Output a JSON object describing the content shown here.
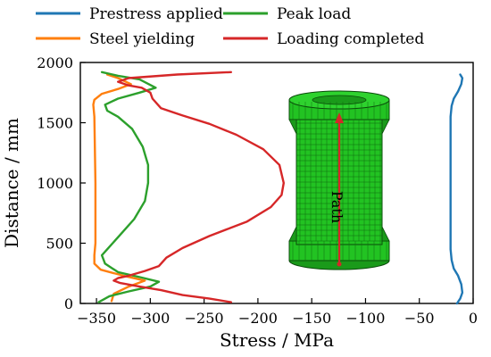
{
  "chart_data": {
    "type": "line",
    "xlabel": "Stress / MPa",
    "ylabel": "Distance / mm",
    "xlim": [
      -365,
      0
    ],
    "ylim": [
      0,
      2000
    ],
    "xticks": [
      -350,
      -300,
      -250,
      -200,
      -150,
      -100,
      -50,
      0
    ],
    "yticks": [
      0,
      500,
      1000,
      1500,
      2000
    ],
    "grid": false,
    "legend_position": "top",
    "inset_annotation": "Path",
    "colors": {
      "prestress": "#1f77b4",
      "peak": "#2ca02c",
      "yield": "#ff7f0e",
      "complete": "#d62728",
      "model_fill": "#22c322",
      "model_mesh": "#0f6b0f",
      "arrow": "#d62728"
    },
    "series": [
      {
        "name": "Prestress applied",
        "color": "#1f77b4",
        "points": [
          [
            -12,
            1900
          ],
          [
            -10,
            1870
          ],
          [
            -11,
            1820
          ],
          [
            -14,
            1760
          ],
          [
            -18,
            1700
          ],
          [
            -20,
            1640
          ],
          [
            -21,
            1550
          ],
          [
            -21,
            1000
          ],
          [
            -21,
            450
          ],
          [
            -20,
            360
          ],
          [
            -18,
            290
          ],
          [
            -14,
            230
          ],
          [
            -11,
            160
          ],
          [
            -10,
            90
          ],
          [
            -12,
            40
          ],
          [
            -15,
            0
          ]
        ]
      },
      {
        "name": "Steel yielding",
        "color": "#ff7f0e",
        "points": [
          [
            -340,
            1900
          ],
          [
            -330,
            1870
          ],
          [
            -318,
            1820
          ],
          [
            -330,
            1780
          ],
          [
            -345,
            1740
          ],
          [
            -352,
            1690
          ],
          [
            -353,
            1650
          ],
          [
            -352,
            1550
          ],
          [
            -351,
            1000
          ],
          [
            -351,
            500
          ],
          [
            -352,
            400
          ],
          [
            -352,
            330
          ],
          [
            -346,
            280
          ],
          [
            -325,
            230
          ],
          [
            -305,
            190
          ],
          [
            -320,
            140
          ],
          [
            -334,
            80
          ],
          [
            -336,
            20
          ]
        ]
      },
      {
        "name": "Peak load",
        "color": "#2ca02c",
        "points": [
          [
            -345,
            1920
          ],
          [
            -330,
            1890
          ],
          [
            -310,
            1860
          ],
          [
            -295,
            1790
          ],
          [
            -310,
            1750
          ],
          [
            -330,
            1700
          ],
          [
            -342,
            1650
          ],
          [
            -340,
            1600
          ],
          [
            -330,
            1550
          ],
          [
            -317,
            1450
          ],
          [
            -307,
            1300
          ],
          [
            -302,
            1150
          ],
          [
            -302,
            1000
          ],
          [
            -305,
            850
          ],
          [
            -315,
            700
          ],
          [
            -330,
            550
          ],
          [
            -340,
            450
          ],
          [
            -345,
            400
          ],
          [
            -342,
            330
          ],
          [
            -330,
            260
          ],
          [
            -308,
            215
          ],
          [
            -292,
            180
          ],
          [
            -300,
            140
          ],
          [
            -320,
            100
          ],
          [
            -338,
            60
          ],
          [
            -348,
            10
          ]
        ]
      },
      {
        "name": "Loading completed",
        "color": "#d62728",
        "points": [
          [
            -225,
            1920
          ],
          [
            -275,
            1900
          ],
          [
            -320,
            1870
          ],
          [
            -330,
            1840
          ],
          [
            -320,
            1810
          ],
          [
            -308,
            1790
          ],
          [
            -300,
            1750
          ],
          [
            -298,
            1700
          ],
          [
            -290,
            1620
          ],
          [
            -270,
            1560
          ],
          [
            -245,
            1490
          ],
          [
            -220,
            1400
          ],
          [
            -195,
            1280
          ],
          [
            -180,
            1150
          ],
          [
            -176,
            1000
          ],
          [
            -178,
            900
          ],
          [
            -188,
            800
          ],
          [
            -210,
            680
          ],
          [
            -245,
            560
          ],
          [
            -270,
            460
          ],
          [
            -285,
            380
          ],
          [
            -292,
            310
          ],
          [
            -305,
            270
          ],
          [
            -320,
            230
          ],
          [
            -330,
            210
          ],
          [
            -334,
            190
          ],
          [
            -328,
            170
          ],
          [
            -310,
            140
          ],
          [
            -290,
            110
          ],
          [
            -270,
            70
          ],
          [
            -245,
            40
          ],
          [
            -225,
            10
          ]
        ]
      }
    ]
  }
}
